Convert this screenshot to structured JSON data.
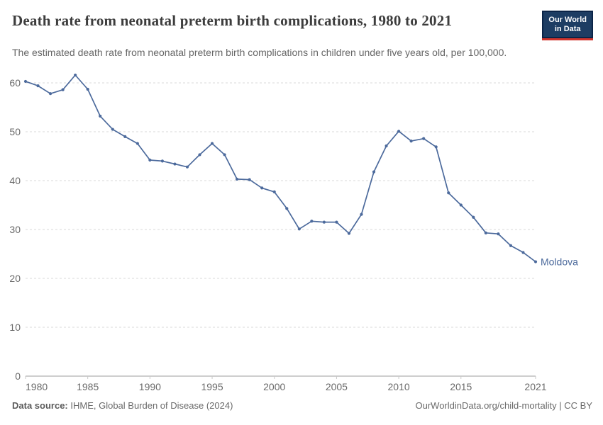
{
  "header": {
    "subtitle": "The estimated death rate from neonatal preterm birth complications in children under five years old, per 100,000.",
    "logo": {
      "line1": "Our World",
      "line2": "in Data"
    }
  },
  "footer": {
    "source_label": "Data source:",
    "source_text": " IHME, Global Burden of Disease (2024)",
    "link_text": "OurWorldinData.org/child-mortality | CC BY"
  },
  "colors": {
    "line": "#4C6A9C",
    "grid": "#d9d9d9",
    "axis": "#9e9e9e",
    "tick_mark": "#c8c8c8",
    "tick_text": "#6a6a6a",
    "title_text": "#3d3d3d",
    "logo_bg": "#1d3d63",
    "logo_border": "#0b2447",
    "logo_stripe": "#d1342c"
  },
  "chart_data": {
    "type": "line",
    "title": "Death rate from neonatal preterm birth complications, 1980 to 2021",
    "xlabel": "",
    "ylabel": "",
    "xlim": [
      1980,
      2021
    ],
    "ylim": [
      0,
      60
    ],
    "x_ticks": [
      1980,
      1985,
      1990,
      1995,
      2000,
      2005,
      2010,
      2015,
      2021
    ],
    "y_ticks": [
      0,
      10,
      20,
      30,
      40,
      50,
      60
    ],
    "grid": "horizontal-dashed",
    "legend_position": "end-of-line-label",
    "series": [
      {
        "name": "Moldova",
        "x": [
          1980,
          1981,
          1982,
          1983,
          1984,
          1985,
          1986,
          1987,
          1988,
          1989,
          1990,
          1991,
          1992,
          1993,
          1994,
          1995,
          1996,
          1997,
          1998,
          1999,
          2000,
          2001,
          2002,
          2003,
          2004,
          2005,
          2006,
          2007,
          2008,
          2009,
          2010,
          2011,
          2012,
          2013,
          2014,
          2015,
          2016,
          2017,
          2018,
          2019,
          2020,
          2021
        ],
        "values": [
          60.3,
          59.4,
          57.8,
          58.6,
          61.6,
          58.7,
          53.2,
          50.5,
          49.0,
          47.6,
          44.2,
          44.0,
          43.4,
          42.8,
          45.3,
          47.6,
          45.3,
          40.3,
          40.2,
          38.5,
          37.7,
          34.3,
          30.1,
          31.7,
          31.5,
          31.5,
          29.2,
          33.1,
          41.8,
          47.1,
          50.1,
          48.1,
          48.6,
          46.9,
          37.5,
          35.0,
          32.5,
          29.3,
          29.1,
          26.7,
          25.3,
          23.4
        ]
      }
    ]
  }
}
